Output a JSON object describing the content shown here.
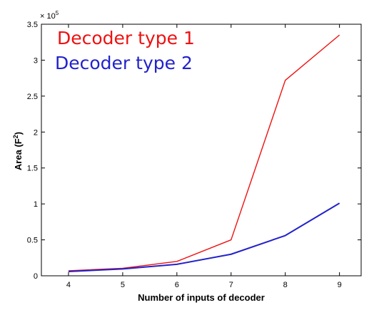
{
  "chart_data": {
    "type": "line",
    "xlabel": "Number of inputs of decoder",
    "ylabel_main": "Area (F",
    "ylabel_sup": "2",
    "ylabel_close": ")",
    "y_exponent_base": "× 10",
    "y_exponent_power": "5",
    "xlim": [
      3.5,
      9.4
    ],
    "ylim": [
      0,
      350000
    ],
    "x_ticks": [
      4,
      5,
      6,
      7,
      8,
      9
    ],
    "x_tick_labels": [
      "4",
      "5",
      "6",
      "7",
      "8",
      "9"
    ],
    "y_ticks": [
      0,
      50000,
      100000,
      150000,
      200000,
      250000,
      300000,
      350000
    ],
    "y_tick_labels": [
      "0",
      "0.5",
      "1",
      "1.5",
      "2",
      "2.5",
      "3",
      "3.5"
    ],
    "grid": false,
    "legend_placement": "top-left",
    "x": [
      4,
      5,
      6,
      7,
      8,
      9
    ],
    "series": [
      {
        "name": "Decoder type 1",
        "color": "#ee1111",
        "values": [
          7000,
          10500,
          20000,
          50000,
          272000,
          335000
        ]
      },
      {
        "name": "Decoder type 2",
        "color": "#2222cc",
        "values": [
          6000,
          9500,
          16000,
          30000,
          56000,
          101000
        ]
      }
    ]
  }
}
